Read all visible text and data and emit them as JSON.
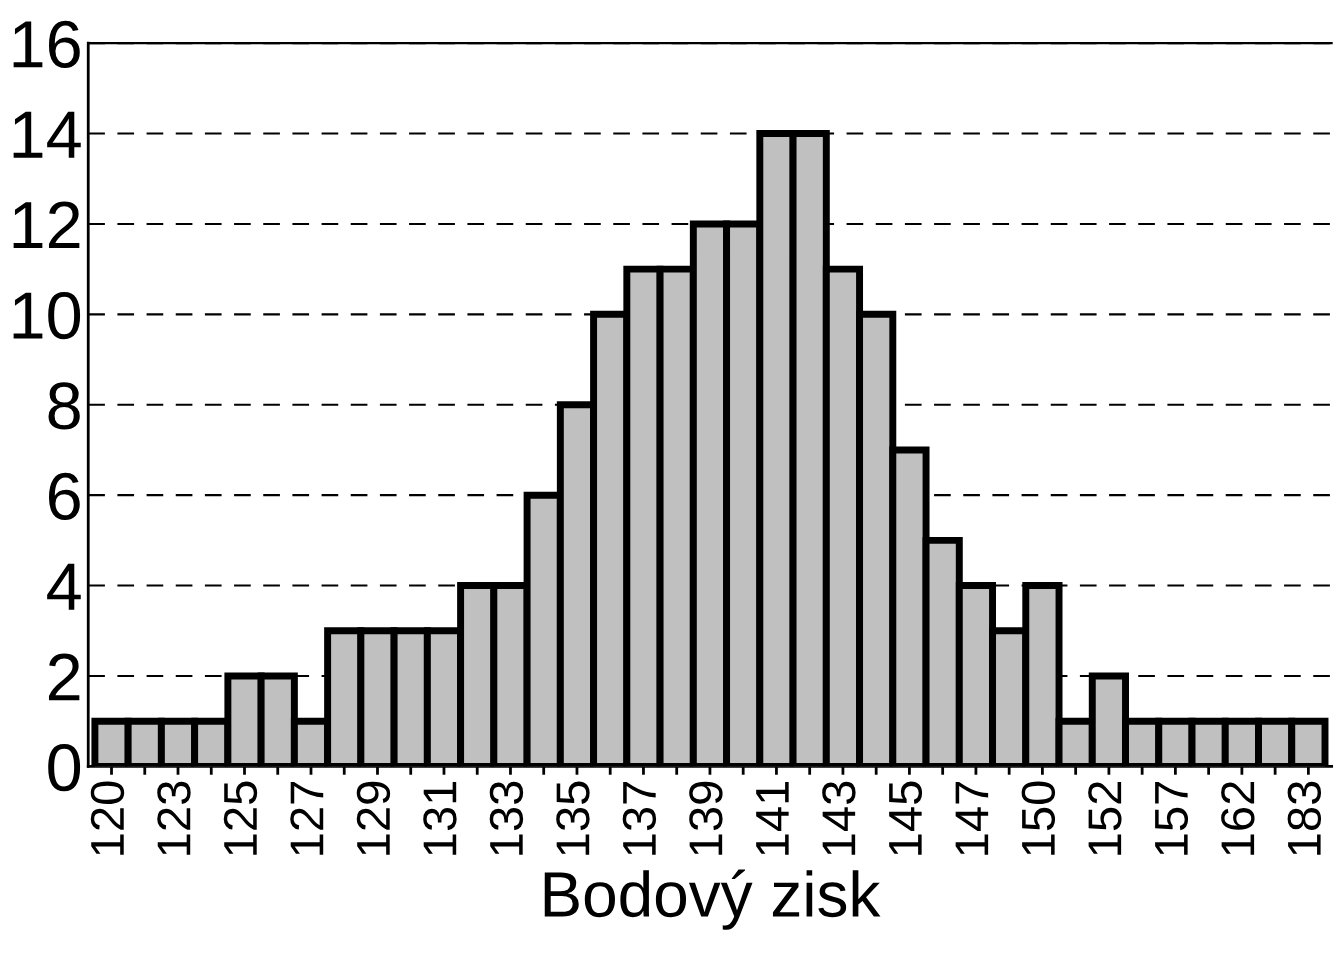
{
  "chart_data": {
    "type": "bar",
    "xlabel": "Bodový zisk",
    "categories": [
      "120",
      null,
      "123",
      null,
      "125",
      null,
      "127",
      null,
      "129",
      null,
      "131",
      null,
      "133",
      null,
      "135",
      null,
      "137",
      null,
      "139",
      null,
      "141",
      null,
      "143",
      null,
      "145",
      null,
      "147",
      null,
      "150",
      null,
      "152",
      null,
      "157",
      null,
      "162",
      null,
      "183"
    ],
    "values": [
      1,
      1,
      1,
      1,
      2,
      2,
      1,
      3,
      3,
      3,
      3,
      4,
      4,
      6,
      8,
      10,
      11,
      11,
      12,
      12,
      14,
      14,
      11,
      10,
      7,
      5,
      4,
      3,
      4,
      1,
      2,
      1,
      1,
      1,
      1,
      1,
      1
    ],
    "color": "#c0c0c0",
    "ylim": [
      0,
      16
    ],
    "yticks": [
      0,
      2,
      4,
      6,
      8,
      10,
      12,
      14,
      16
    ],
    "grid": "y",
    "line_style": "dashed"
  }
}
